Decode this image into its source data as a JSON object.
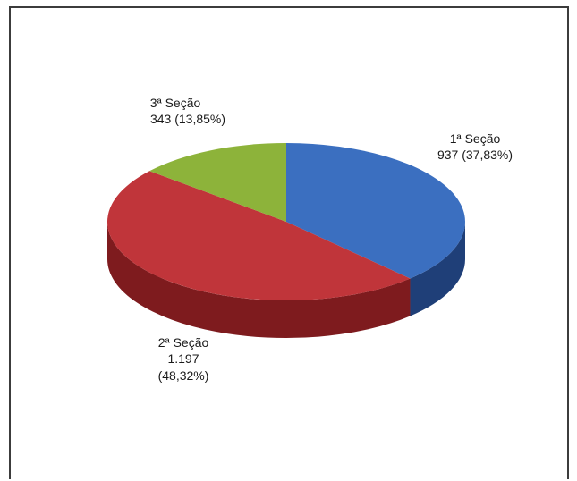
{
  "chart_data": {
    "type": "pie",
    "style": "3d",
    "slices": [
      {
        "name": "1ª Seção",
        "value": 937,
        "percent_label": "(37,83%)",
        "value_label": "937",
        "color": "#3b6fc0",
        "side_color": "#1f3f78"
      },
      {
        "name": "2ª Seção",
        "value": 1197,
        "percent_label": "(48,32%)",
        "value_label": "1.197",
        "color": "#c0353a",
        "side_color": "#7e1b1e"
      },
      {
        "name": "3ª Seção",
        "value": 343,
        "percent_label": "(13,85%)",
        "value_label": "343",
        "color": "#8db33a",
        "side_color": "#5f7d22"
      }
    ],
    "legend": "none"
  }
}
